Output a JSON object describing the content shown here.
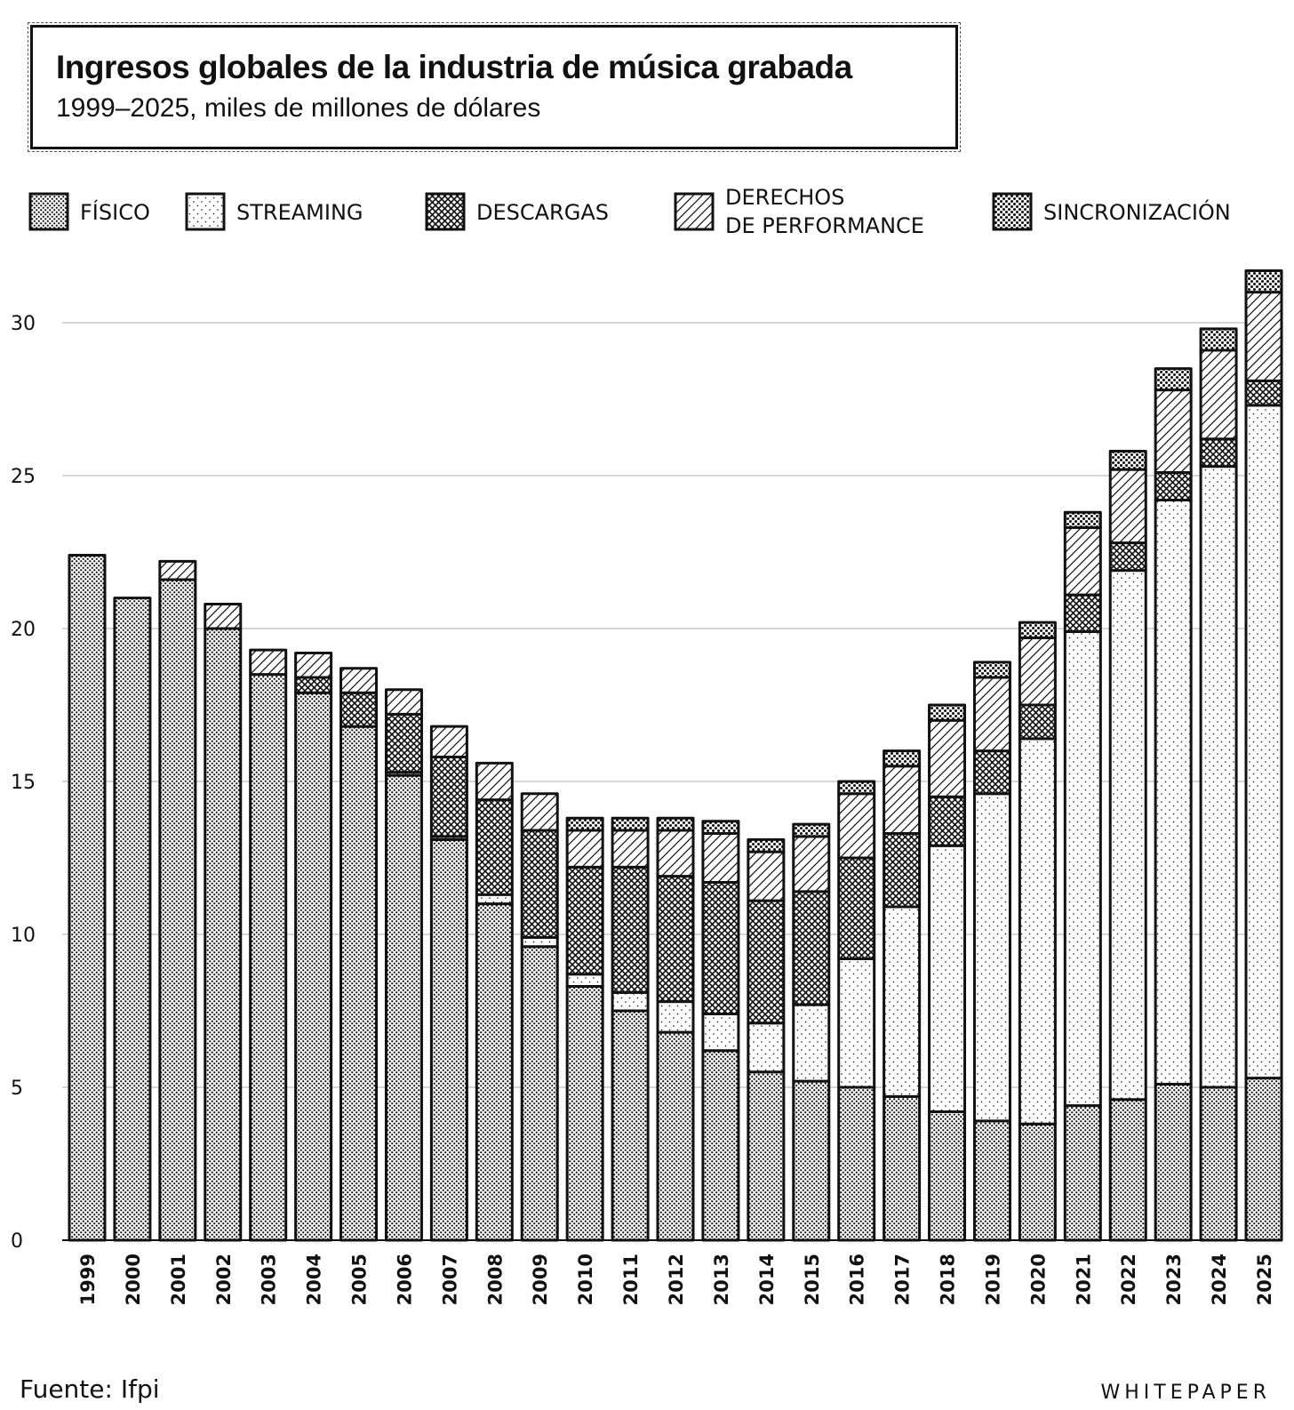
{
  "header": {
    "title": "Ingresos globales de la industria de música grabada",
    "subtitle": "1999–2025, miles de millones de dólares"
  },
  "footer": {
    "source": "Fuente: Ifpi",
    "brand": "WHITEPAPER"
  },
  "chart_data": {
    "type": "bar",
    "stacked": true,
    "title": "Ingresos globales de la industria de música grabada",
    "subtitle": "1999–2025, miles de millones de dólares",
    "xlabel": "",
    "ylabel": "",
    "ylim": [
      0,
      32
    ],
    "yticks": [
      0,
      5,
      10,
      15,
      20,
      25,
      30
    ],
    "grid": true,
    "legend_position": "top",
    "categories": [
      "1999",
      "2000",
      "2001",
      "2002",
      "2003",
      "2004",
      "2005",
      "2006",
      "2007",
      "2008",
      "2009",
      "2010",
      "2011",
      "2012",
      "2013",
      "2014",
      "2015",
      "2016",
      "2017",
      "2018",
      "2019",
      "2020",
      "2021",
      "2022",
      "2023",
      "2024",
      "2025"
    ],
    "series": [
      {
        "name": "Físico",
        "legend": "FÍSICO",
        "pattern": "dense-dots",
        "values": [
          22.4,
          21.0,
          21.6,
          20.0,
          18.5,
          17.9,
          16.8,
          15.2,
          13.1,
          11.0,
          9.6,
          8.3,
          7.5,
          6.8,
          6.2,
          5.5,
          5.2,
          5.0,
          4.7,
          4.2,
          3.9,
          3.8,
          4.4,
          4.6,
          5.1,
          5.0,
          5.3
        ]
      },
      {
        "name": "Streaming",
        "legend": "STREAMING",
        "pattern": "sparse-dots",
        "values": [
          0,
          0,
          0,
          0,
          0,
          0,
          0,
          0.1,
          0.1,
          0.3,
          0.3,
          0.4,
          0.6,
          1.0,
          1.2,
          1.6,
          2.5,
          4.2,
          6.2,
          8.7,
          10.7,
          12.6,
          15.5,
          17.3,
          19.1,
          20.3,
          22.0
        ]
      },
      {
        "name": "Descargas",
        "legend": "DESCARGAS",
        "pattern": "crosshatch",
        "values": [
          0,
          0,
          0,
          0,
          0,
          0.5,
          1.1,
          1.9,
          2.6,
          3.1,
          3.5,
          3.5,
          4.1,
          4.1,
          4.3,
          4.0,
          3.7,
          3.3,
          2.4,
          1.6,
          1.4,
          1.1,
          1.2,
          0.9,
          0.9,
          0.9,
          0.8
        ]
      },
      {
        "name": "Derechos de performance",
        "legend_lines": [
          "DERECHOS",
          "DE PERFORMANCE"
        ],
        "pattern": "diagonal",
        "values": [
          0,
          0,
          0.6,
          0.8,
          0.8,
          0.8,
          0.8,
          0.8,
          1.0,
          1.2,
          1.2,
          1.2,
          1.2,
          1.5,
          1.6,
          1.6,
          1.8,
          2.1,
          2.2,
          2.5,
          2.4,
          2.2,
          2.2,
          2.4,
          2.7,
          2.9,
          2.9
        ]
      },
      {
        "name": "Sincronización",
        "legend": "SINCRONIZACIÓN",
        "pattern": "coarse-dots",
        "values": [
          0,
          0,
          0,
          0,
          0,
          0,
          0,
          0,
          0,
          0,
          0,
          0.4,
          0.4,
          0.4,
          0.4,
          0.4,
          0.4,
          0.4,
          0.5,
          0.5,
          0.5,
          0.5,
          0.5,
          0.6,
          0.7,
          0.7,
          0.7
        ]
      }
    ]
  }
}
